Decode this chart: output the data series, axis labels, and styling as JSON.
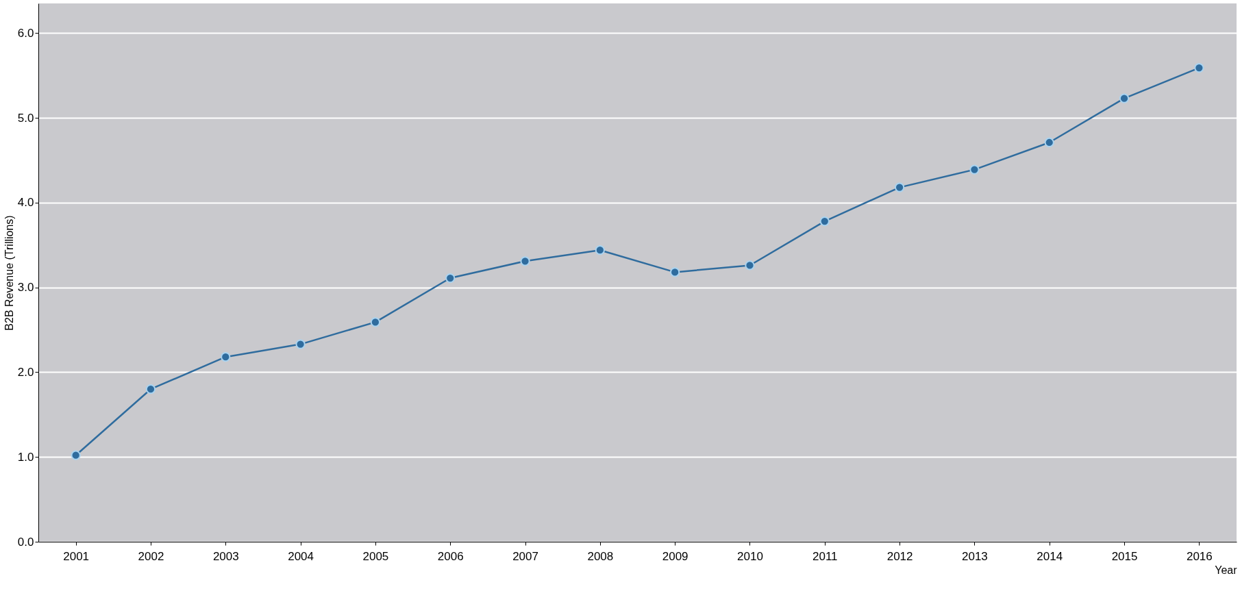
{
  "chart_data": {
    "type": "line",
    "xlabel": "Year",
    "ylabel": "B2B Revenue (Trillions)",
    "categories": [
      "2001",
      "2002",
      "2003",
      "2004",
      "2005",
      "2006",
      "2007",
      "2008",
      "2009",
      "2010",
      "2011",
      "2012",
      "2013",
      "2014",
      "2015",
      "2016"
    ],
    "series": [
      {
        "color": "#2f6c9e",
        "values": [
          1.02,
          1.8,
          2.18,
          2.33,
          2.59,
          3.11,
          3.31,
          3.44,
          3.18,
          3.26,
          3.78,
          4.18,
          4.39,
          4.71,
          5.23,
          5.59
        ]
      }
    ],
    "ylim": [
      0,
      6.35
    ],
    "yticks": [
      {
        "value": 0,
        "label": "0.0"
      },
      {
        "value": 1,
        "label": "1.0"
      },
      {
        "value": 2,
        "label": "2.0"
      },
      {
        "value": 3,
        "label": "3.0"
      },
      {
        "value": 4,
        "label": "4.0"
      },
      {
        "value": 5,
        "label": "5.0"
      },
      {
        "value": 6,
        "label": "6.0"
      }
    ],
    "grid": "y",
    "marker": "circle",
    "line_style": "solid"
  }
}
